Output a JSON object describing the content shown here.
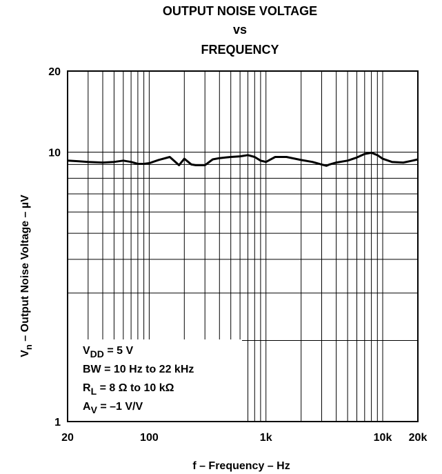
{
  "chart_data": {
    "type": "line",
    "title_lines": [
      "OUTPUT NOISE VOLTAGE",
      "vs",
      "FREQUENCY"
    ],
    "xlabel": "f – Frequency – Hz",
    "ylabel_main": "V",
    "ylabel_sub": "n",
    "ylabel_rest": "  – Output Noise Voltage – µV",
    "x_scale": "log",
    "y_scale": "log",
    "xlim": [
      20,
      20000
    ],
    "ylim": [
      1,
      20
    ],
    "grid": true,
    "x_ticks": [
      {
        "value": 20,
        "label": "20"
      },
      {
        "value": 100,
        "label": "100"
      },
      {
        "value": 1000,
        "label": "1k"
      },
      {
        "value": 10000,
        "label": "10k"
      },
      {
        "value": 20000,
        "label": "20k"
      }
    ],
    "y_ticks": [
      {
        "value": 1,
        "label": "1"
      },
      {
        "value": 10,
        "label": "10"
      },
      {
        "value": 20,
        "label": "20"
      }
    ],
    "series": [
      {
        "x": [
          20,
          25,
          30,
          40,
          50,
          60,
          70,
          80,
          90,
          100,
          120,
          150,
          180,
          200,
          230,
          250,
          270,
          300,
          350,
          400,
          450,
          500,
          600,
          700,
          800,
          900,
          1000,
          1200,
          1500,
          2000,
          2500,
          3000,
          3300,
          3500,
          4000,
          5000,
          6000,
          7000,
          8000,
          9000,
          10000,
          12000,
          15000,
          18000,
          20000
        ],
        "y": [
          9.3,
          9.25,
          9.2,
          9.15,
          9.2,
          9.3,
          9.2,
          9.05,
          9.05,
          9.1,
          9.35,
          9.6,
          8.95,
          9.45,
          9.0,
          8.95,
          8.95,
          8.95,
          9.4,
          9.5,
          9.55,
          9.6,
          9.65,
          9.75,
          9.6,
          9.3,
          9.2,
          9.6,
          9.6,
          9.35,
          9.2,
          9.0,
          8.9,
          9.0,
          9.15,
          9.3,
          9.55,
          9.85,
          9.95,
          9.75,
          9.45,
          9.2,
          9.15,
          9.3,
          9.4
        ]
      }
    ],
    "annotations": [
      {
        "main": "V",
        "sub": "DD",
        "rest": " = 5 V"
      },
      {
        "main": "BW = 10 Hz to 22 kHz",
        "sub": "",
        "rest": ""
      },
      {
        "main": "R",
        "sub": "L",
        "rest": " = 8 Ω to 10 kΩ"
      },
      {
        "main": "A",
        "sub": "V",
        "rest": " = –1 V/V"
      }
    ]
  }
}
